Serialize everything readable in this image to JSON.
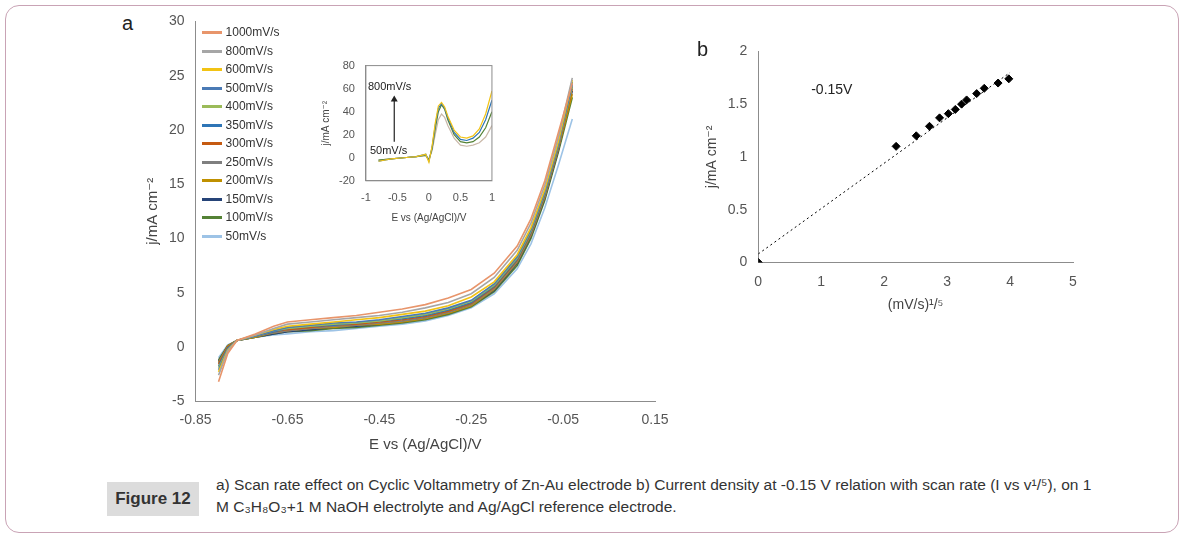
{
  "figure_label": "Figure 12",
  "caption": "a) Scan rate effect on Cyclic Voltammetry of Zn-Au electrode b) Current density at -0.15 V relation with scan rate (I vs v¹/⁵),  on 1 M C₃H₈O₃+1 M NaOH electrolyte and Ag/AgCl reference electrode.",
  "chart_data": [
    {
      "type": "line",
      "title": "a",
      "xlabel": "E vs (Ag/AgCl)/V",
      "ylabel": "j/mA cm⁻²",
      "x": [
        -0.8,
        -0.78,
        -0.76,
        -0.72,
        -0.68,
        -0.65,
        -0.6,
        -0.55,
        -0.5,
        -0.45,
        -0.4,
        -0.35,
        -0.3,
        -0.25,
        -0.2,
        -0.15,
        -0.12,
        -0.09,
        -0.06,
        -0.03
      ],
      "series": [
        {
          "name": "1000mV/s",
          "color": "#e8956b",
          "values": [
            -3.2,
            -0.6,
            0.6,
            1.2,
            1.9,
            2.3,
            2.5,
            2.7,
            2.9,
            3.2,
            3.5,
            3.9,
            4.5,
            5.3,
            6.8,
            9.3,
            11.8,
            15.3,
            19.8,
            24.3
          ]
        },
        {
          "name": "800mV/s",
          "color": "#a6a6a6",
          "values": [
            -2.6,
            -0.4,
            0.6,
            1.1,
            1.7,
            2.1,
            2.3,
            2.5,
            2.7,
            2.9,
            3.2,
            3.6,
            4.1,
            4.9,
            6.4,
            8.9,
            11.4,
            14.9,
            19.4,
            24.8
          ]
        },
        {
          "name": "600mV/s",
          "color": "#f2c314",
          "values": [
            -2.3,
            -0.3,
            0.6,
            1.1,
            1.6,
            1.9,
            2.1,
            2.3,
            2.5,
            2.7,
            3.0,
            3.3,
            3.8,
            4.6,
            6.0,
            8.5,
            11.0,
            14.5,
            19.0,
            24.6
          ]
        },
        {
          "name": "500mV/s",
          "color": "#4a7ab5",
          "values": [
            -2.1,
            -0.2,
            0.6,
            1.0,
            1.5,
            1.8,
            2.0,
            2.2,
            2.3,
            2.5,
            2.8,
            3.1,
            3.6,
            4.3,
            5.8,
            8.3,
            10.8,
            14.3,
            18.8,
            24.2
          ]
        },
        {
          "name": "400mV/s",
          "color": "#9bbb59",
          "values": [
            -1.9,
            -0.2,
            0.6,
            1.0,
            1.5,
            1.7,
            1.9,
            2.1,
            2.2,
            2.4,
            2.7,
            3.0,
            3.5,
            4.2,
            5.7,
            8.2,
            10.7,
            14.2,
            18.7,
            24.0
          ]
        },
        {
          "name": "350mV/s",
          "color": "#2e75b6",
          "values": [
            -1.8,
            -0.1,
            0.6,
            1.0,
            1.4,
            1.7,
            1.9,
            2.0,
            2.2,
            2.4,
            2.6,
            2.9,
            3.4,
            4.1,
            5.6,
            8.1,
            10.6,
            14.1,
            18.6,
            24.4
          ]
        },
        {
          "name": "300mV/s",
          "color": "#c55a11",
          "values": [
            -1.6,
            0.0,
            0.6,
            1.0,
            1.4,
            1.6,
            1.8,
            2.0,
            2.1,
            2.3,
            2.5,
            2.8,
            3.3,
            4.0,
            5.5,
            8.0,
            10.5,
            14.0,
            18.5,
            23.8
          ]
        },
        {
          "name": "250mV/s",
          "color": "#7f7f7f",
          "values": [
            -1.5,
            0.0,
            0.6,
            1.0,
            1.3,
            1.5,
            1.7,
            1.9,
            2.0,
            2.2,
            2.4,
            2.7,
            3.2,
            3.9,
            5.4,
            7.9,
            10.4,
            13.9,
            18.4,
            24.0
          ]
        },
        {
          "name": "200mV/s",
          "color": "#bf9000",
          "values": [
            -1.4,
            0.1,
            0.6,
            0.9,
            1.3,
            1.5,
            1.7,
            1.8,
            2.0,
            2.1,
            2.3,
            2.6,
            3.1,
            3.8,
            5.3,
            7.8,
            10.3,
            13.8,
            18.3,
            23.3
          ]
        },
        {
          "name": "150mV/s",
          "color": "#264478",
          "values": [
            -1.3,
            0.1,
            0.6,
            0.9,
            1.2,
            1.4,
            1.6,
            1.8,
            1.9,
            2.1,
            2.3,
            2.6,
            3.1,
            3.8,
            5.2,
            7.7,
            10.2,
            13.7,
            18.2,
            23.6
          ]
        },
        {
          "name": "100mV/s",
          "color": "#548235",
          "values": [
            -1.2,
            0.1,
            0.6,
            0.9,
            1.2,
            1.4,
            1.5,
            1.7,
            1.8,
            2.0,
            2.2,
            2.5,
            3.0,
            3.7,
            5.1,
            7.5,
            10.0,
            13.5,
            18.0,
            23.0
          ]
        },
        {
          "name": "50mV/s",
          "color": "#9dc3e6",
          "values": [
            -1.0,
            0.2,
            0.6,
            0.9,
            1.1,
            1.2,
            1.4,
            1.5,
            1.7,
            1.9,
            2.1,
            2.4,
            2.9,
            3.6,
            4.9,
            7.2,
            9.5,
            12.8,
            16.8,
            21.0
          ]
        }
      ],
      "xlim": [
        -0.85,
        0.15
      ],
      "xticks": [
        -0.85,
        -0.65,
        -0.45,
        -0.25,
        -0.05,
        0.15
      ],
      "ylim": [
        -5,
        30
      ],
      "yticks": [
        -5,
        0,
        5,
        10,
        15,
        20,
        25,
        30
      ],
      "grid": false,
      "legend": "upper left",
      "marker": "none"
    },
    {
      "type": "line",
      "xlabel": "E vs (Ag/AgCl)/V",
      "ylabel": "j/mA cm⁻²",
      "annotations": [
        "800mV/s",
        "50mV/s"
      ],
      "x": [
        -0.8,
        -0.6,
        -0.4,
        -0.2,
        -0.05,
        0,
        0.05,
        0.1,
        0.15,
        0.2,
        0.25,
        0.3,
        0.4,
        0.5,
        0.6,
        0.7,
        0.8,
        0.9,
        1.0
      ],
      "series": [
        {
          "color": "#f2c314",
          "values": [
            -3,
            -1,
            0,
            1,
            3,
            -4,
            10,
            30,
            45,
            48,
            44,
            36,
            24,
            18,
            17,
            19,
            25,
            38,
            58
          ]
        },
        {
          "color": "#2e75b6",
          "values": [
            -3,
            -1,
            0,
            1,
            3,
            -3,
            9,
            28,
            43,
            47,
            43,
            35,
            22,
            16,
            15,
            17,
            22,
            33,
            50
          ]
        },
        {
          "color": "#548235",
          "values": [
            -2,
            -1,
            0,
            1,
            2,
            -2,
            8,
            25,
            40,
            46,
            42,
            33,
            20,
            14,
            13,
            14,
            18,
            26,
            40
          ]
        },
        {
          "color": "#c9b8a8",
          "values": [
            -2,
            -1,
            0,
            1,
            2,
            -1,
            6,
            20,
            33,
            38,
            35,
            28,
            17,
            11,
            10,
            11,
            13,
            18,
            28
          ]
        }
      ],
      "xlim": [
        -1,
        1
      ],
      "xticks": [
        -1,
        -0.5,
        0,
        0.5,
        1
      ],
      "ylim": [
        -20,
        80
      ],
      "yticks": [
        -20,
        0,
        20,
        40,
        60,
        80
      ],
      "grid": false,
      "marker": "none"
    },
    {
      "type": "scatter",
      "title": "b",
      "xlabel": "(mV/s)¹/⁵",
      "ylabel": "j/mA cm⁻²",
      "annotations": [
        "-0.15V"
      ],
      "x": [
        0,
        2.19,
        2.51,
        2.72,
        2.88,
        3.02,
        3.13,
        3.23,
        3.31,
        3.47,
        3.59,
        3.81,
        3.98
      ],
      "series": [
        {
          "color": "#000000",
          "marker": "diamond",
          "values": [
            0,
            1.1,
            1.2,
            1.29,
            1.37,
            1.41,
            1.45,
            1.5,
            1.54,
            1.6,
            1.65,
            1.7,
            1.74
          ]
        },
        {
          "type": "line",
          "line_style": "dotted",
          "marker": "none",
          "color": "#000000",
          "x": [
            0,
            4
          ],
          "values": [
            0.08,
            1.8
          ]
        }
      ],
      "xlim": [
        0,
        5
      ],
      "xticks": [
        0,
        1,
        2,
        3,
        4,
        5
      ],
      "ylim": [
        0,
        2
      ],
      "yticks": [
        0,
        0.5,
        1,
        1.5,
        2
      ],
      "grid": false
    }
  ]
}
